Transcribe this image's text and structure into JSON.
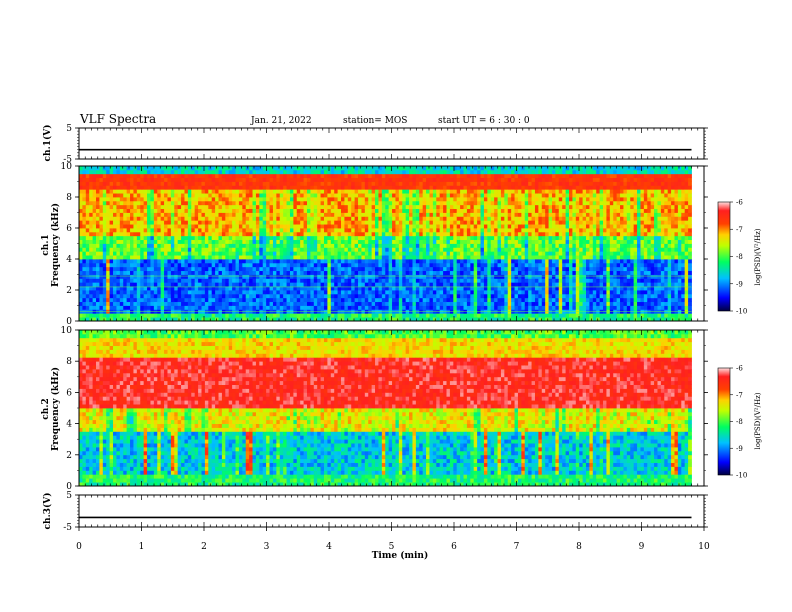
{
  "header": {
    "title": "VLF Spectra",
    "date": "Jan. 21, 2022",
    "station": "station= MOS",
    "start": "start  UT =   6 : 30 : 0"
  },
  "chart_data": [
    {
      "type": "line",
      "panel": "ch1-voltage",
      "ylabel": "ch.1(V)",
      "ylim": [
        -5,
        5
      ],
      "y_ticks": [
        "5",
        "-5"
      ],
      "xlim": [
        0,
        10
      ],
      "series": [
        {
          "x": [
            0,
            9.8
          ],
          "values": [
            -2,
            -2
          ]
        }
      ]
    },
    {
      "type": "heatmap",
      "panel": "ch1-spectrogram",
      "ylabel_line1": "ch.1",
      "ylabel_line2": "Frequency  (kHz)",
      "ylim": [
        0,
        10
      ],
      "y_ticks": [
        "0",
        "2",
        "4",
        "6",
        "8",
        "10"
      ],
      "xlim": [
        0,
        10
      ],
      "colorbar": {
        "label": "log(PSD)(V²/Hz)",
        "range": [
          -10,
          -6
        ],
        "ticks": [
          "-6",
          "-7",
          "-8",
          "-9",
          "-10"
        ]
      }
    },
    {
      "type": "heatmap",
      "panel": "ch2-spectrogram",
      "ylabel_line1": "ch.2",
      "ylabel_line2": "Frequency  (kHz)",
      "ylim": [
        0,
        10
      ],
      "y_ticks": [
        "0",
        "2",
        "4",
        "6",
        "8",
        "10"
      ],
      "xlim": [
        0,
        10
      ],
      "colorbar": {
        "label": "log(PSD)(V²/Hz)",
        "range": [
          -10,
          -6
        ],
        "ticks": [
          "-6",
          "-7",
          "-8",
          "-9",
          "-10"
        ]
      }
    },
    {
      "type": "line",
      "panel": "ch3-voltage",
      "ylabel": "ch.3(V)",
      "ylim": [
        -5,
        5
      ],
      "y_ticks": [
        "5",
        "-5"
      ],
      "xlim": [
        0,
        10
      ],
      "series": [
        {
          "x": [
            0,
            9.8
          ],
          "values": [
            -2,
            -2
          ]
        }
      ]
    }
  ],
  "x_axis": {
    "label": "Time  (min)",
    "ticks": [
      "0",
      "1",
      "2",
      "3",
      "4",
      "5",
      "6",
      "7",
      "8",
      "9",
      "10"
    ]
  }
}
